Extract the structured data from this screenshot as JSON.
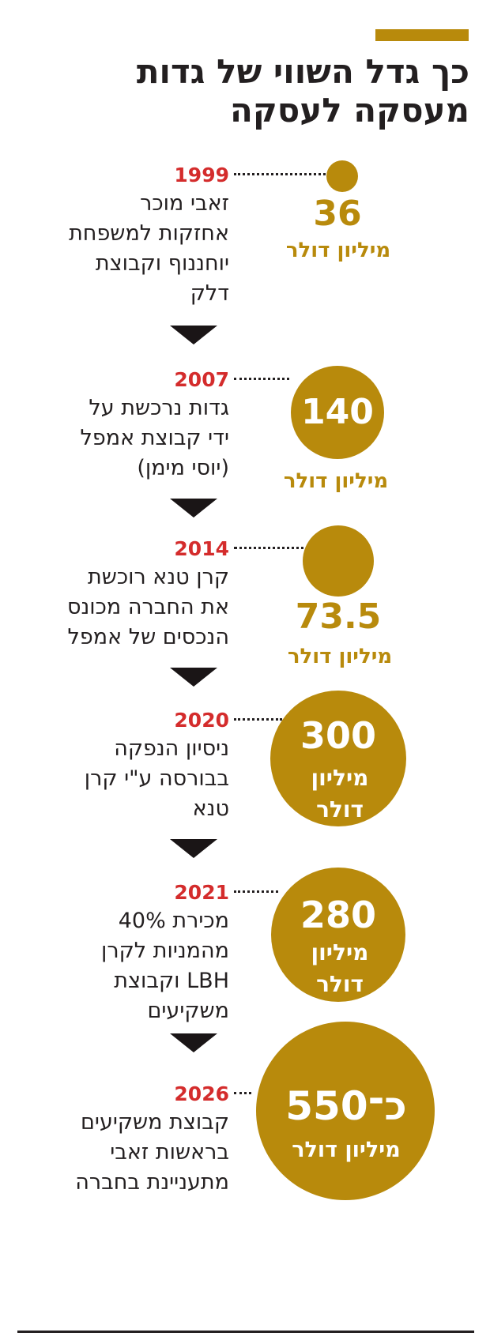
{
  "title": {
    "line1": "כך גדל השווי של גדות",
    "line2": "מעסקה לעסקה"
  },
  "chart_data": {
    "type": "timeline-bubble",
    "unit": "מיליון דולר",
    "colors": {
      "bubble": "#b88a0c",
      "year": "#d42c2c",
      "text": "#231f20",
      "arrow": "#1a1516"
    },
    "events": [
      {
        "year": "1999",
        "value": 36,
        "value_label": "36",
        "unit_label": "מיליון דולר",
        "desc_lines": [
          "זאבי מוכר",
          "אחזקות למשפחת",
          "יוחננוף וקבוצת",
          "דלק"
        ]
      },
      {
        "year": "2007",
        "value": 140,
        "value_label": "140",
        "unit_label": "מיליון דולר",
        "desc_lines": [
          "גדות נרכשת על",
          "ידי קבוצת אמפל",
          "(יוסי מימן)"
        ]
      },
      {
        "year": "2014",
        "value": 73.5,
        "value_label": "73.5",
        "unit_label": "מיליון דולר",
        "desc_lines": [
          "קרן טנא רוכשת",
          "את החברה מכונס",
          "הנכסים של אמפל"
        ]
      },
      {
        "year": "2020",
        "value": 300,
        "value_label": "300",
        "unit_label": [
          "מיליון",
          "דולר"
        ],
        "desc_lines": [
          "ניסיון הנפקה",
          "בבורסה ע\"י קרן",
          "טנא"
        ]
      },
      {
        "year": "2021",
        "value": 280,
        "value_label": "280",
        "unit_label": [
          "מיליון",
          "דולר"
        ],
        "desc_lines": [
          "מכירת 40%",
          "מהמניות לקרן",
          "LBH וקבוצת",
          "משקיעים"
        ]
      },
      {
        "year": "2026",
        "value": 550,
        "value_label": "כ־550",
        "unit_label": "מיליון דולר",
        "desc_lines": [
          "קבוצת משקיעים",
          "בראשות זאבי",
          "מתעניינת בחברה"
        ]
      }
    ]
  }
}
